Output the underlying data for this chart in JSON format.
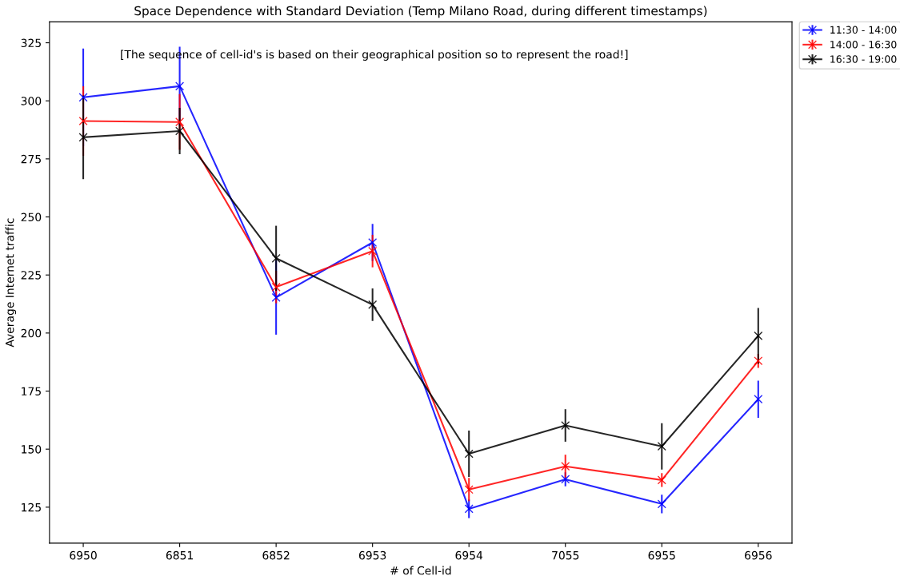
{
  "chart_data": {
    "type": "line",
    "title": "Space Dependence with Standard Deviation (Temp Milano Road, during different timestamps)",
    "xlabel": "# of Cell-id",
    "ylabel": "Average Internet traffic",
    "categories": [
      "6950",
      "6851",
      "6852",
      "6953",
      "6954",
      "7055",
      "6955",
      "6956"
    ],
    "series": [
      {
        "name": "11:30 - 14:00",
        "color": "#0000ff",
        "values": [
          301.5,
          306.3,
          215.3,
          239,
          124.3,
          137,
          126.4,
          171.5
        ],
        "errors": [
          21,
          17,
          16,
          8,
          4,
          3,
          4,
          8
        ]
      },
      {
        "name": "14:00 - 16:30",
        "color": "#ff0000",
        "values": [
          291.3,
          290.9,
          219.8,
          235.3,
          132.6,
          142.6,
          136.7,
          188
        ],
        "errors": [
          15,
          12,
          7,
          7,
          5,
          5,
          3,
          3
        ]
      },
      {
        "name": "16:30 - 19:00",
        "color": "#000000",
        "values": [
          284.3,
          287,
          232.2,
          212.2,
          148,
          160.2,
          151.2,
          198.8
        ],
        "errors": [
          18,
          10,
          14,
          7,
          10,
          7,
          10,
          12
        ]
      }
    ],
    "ylim": [
      109.5,
      334
    ],
    "yticks": [
      125,
      150,
      175,
      200,
      225,
      250,
      275,
      300,
      325
    ],
    "annotations": [
      "[The sequence of cell-id's is based on their geographical position so to represent the road!]"
    ],
    "legend": "top right",
    "marker": "cross",
    "grid": false
  }
}
